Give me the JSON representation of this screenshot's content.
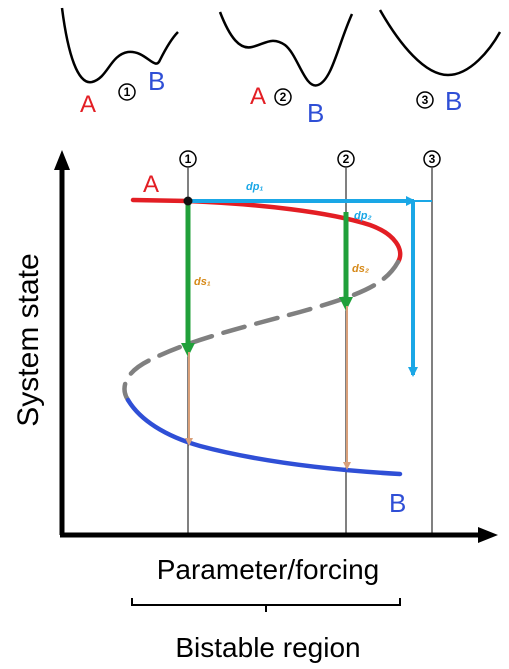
{
  "axes": {
    "y_label": "System state",
    "x_label": "Parameter/forcing",
    "region_label": "Bistable region"
  },
  "states": {
    "a": "A",
    "b": "B"
  },
  "markers": [
    "1",
    "2",
    "3"
  ],
  "landscapes": [
    {
      "left_label": "A",
      "marker": "1",
      "right_label": "B"
    },
    {
      "left_label": "A",
      "marker": "2",
      "right_label": "B"
    },
    {
      "marker": "3",
      "right_label": "B"
    }
  ],
  "arrows": {
    "dp1": "dp₁",
    "dp2": "dp₂",
    "ds1": "ds₁",
    "ds2": "ds₂"
  },
  "colors": {
    "state_a": "#e31e24",
    "state_b": "#2f4fd6",
    "unstable": "#808080",
    "dp_arrows": "#1aa7e6",
    "ds_arrows": "#20a03a",
    "recovery": "#d9a07a"
  }
}
